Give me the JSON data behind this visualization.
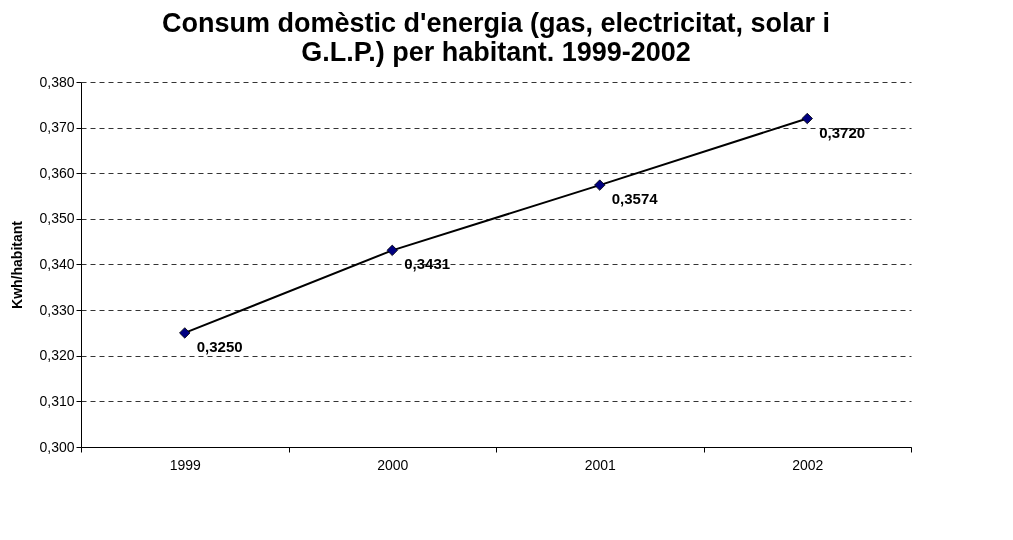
{
  "chart_data": {
    "type": "line",
    "title": "Consum domèstic d'energia (gas, electricitat, solar i G.L.P.) per habitant. 1999-2002",
    "ylabel": "Kwh/habitant",
    "categories": [
      "1999",
      "2000",
      "2001",
      "2002"
    ],
    "series": [
      {
        "color": "#000080",
        "values": [
          0.325,
          0.3431,
          0.3574,
          0.372
        ],
        "value_labels": [
          "0,3250",
          "0,3431",
          "0,3574",
          "0,3720"
        ]
      }
    ],
    "ylim": [
      0.3,
      0.38
    ],
    "yticks": [
      {
        "value": 0.3,
        "label": "0,300"
      },
      {
        "value": 0.31,
        "label": "0,310"
      },
      {
        "value": 0.32,
        "label": "0,320"
      },
      {
        "value": 0.33,
        "label": "0,330"
      },
      {
        "value": 0.34,
        "label": "0,340"
      },
      {
        "value": 0.35,
        "label": "0,350"
      },
      {
        "value": 0.36,
        "label": "0,360"
      },
      {
        "value": 0.37,
        "label": "0,370"
      },
      {
        "value": 0.38,
        "label": "0,380"
      }
    ],
    "grid": "y",
    "marker": "diamond",
    "line_style": "solid"
  }
}
